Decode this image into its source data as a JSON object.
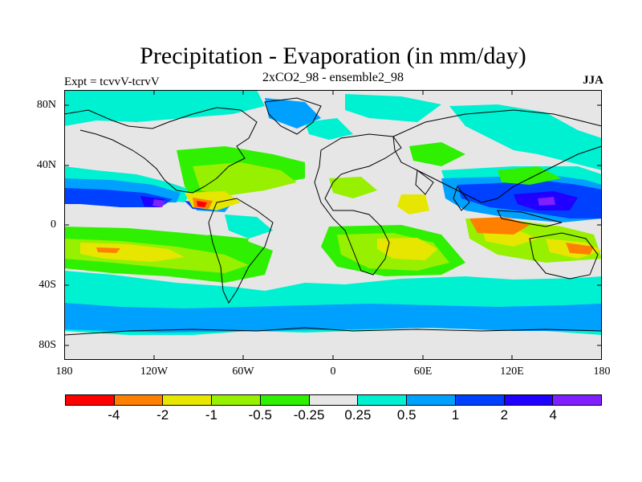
{
  "header": {
    "title": "Precipitation - Evaporation (in mm/day)",
    "subtitle": "2xCO2_98 - ensemble2_98",
    "left_label": "Expt = tcvvV-tcrvV",
    "right_label": "JJA"
  },
  "map": {
    "lat_ticks": [
      "80N",
      "40N",
      "0",
      "40S",
      "80S"
    ],
    "lon_ticks": [
      "180",
      "120W",
      "60W",
      "0",
      "60E",
      "120E",
      "180"
    ],
    "land_color": "#e6e6e6",
    "ocean_color": "#e6e6e6",
    "coastline_color": "#000000"
  },
  "colorbar": {
    "colors": [
      "#ff0000",
      "#ff8000",
      "#e6e600",
      "#96f000",
      "#2ef000",
      "#e6e6e6",
      "#00f0d2",
      "#00a0ff",
      "#0040ff",
      "#2000ff",
      "#8020ff"
    ],
    "labels": [
      "-4",
      "-2",
      "-1",
      "-0.5",
      "-0.25",
      "0.25",
      "0.5",
      "1",
      "2",
      "4"
    ]
  }
}
